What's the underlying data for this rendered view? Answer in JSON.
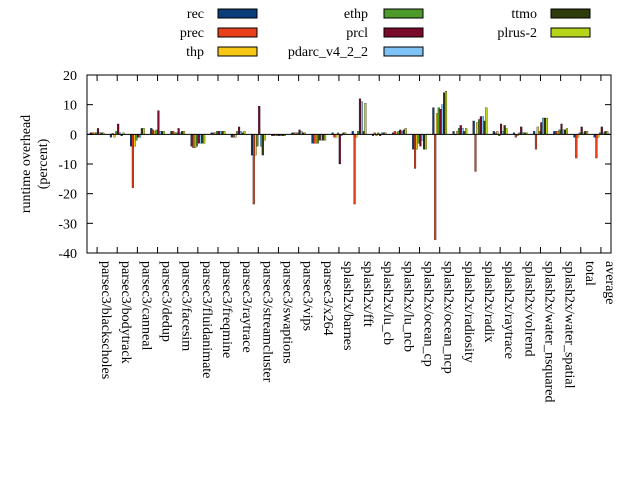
{
  "chart_data": {
    "type": "bar",
    "title": "",
    "xlabel": "",
    "ylabel": "runtime overhead (percent)",
    "ylabel_lines": [
      "runtime overhead",
      "(percent)"
    ],
    "ylim": [
      -40,
      20
    ],
    "yticks": [
      20,
      10,
      0,
      -10,
      -20,
      -30,
      -40
    ],
    "grid": false,
    "legend_position": "top",
    "categories": [
      "parsec3/blackscholes",
      "parsec3/bodytrack",
      "parsec3/canneal",
      "parsec3/dedup",
      "parsec3/facesim",
      "parsec3/fluidanimate",
      "parsec3/freqmine",
      "parsec3/raytrace",
      "parsec3/streamcluster",
      "parsec3/swaptions",
      "parsec3/vips",
      "parsec3/x264",
      "splash2x/barnes",
      "splash2x/fft",
      "splash2x/lu_cb",
      "splash2x/lu_ncb",
      "splash2x/ocean_cp",
      "splash2x/ocean_ncp",
      "splash2x/radiosity",
      "splash2x/radix",
      "splash2x/raytrace",
      "splash2x/volrend",
      "splash2x/water_nsquared",
      "splash2x/water_spatial",
      "total",
      "average"
    ],
    "series": [
      {
        "name": "rec",
        "color": "#0a3d7a",
        "values": [
          0.5,
          -1,
          -4,
          2,
          1,
          -4,
          0.5,
          -1,
          -7,
          -0.5,
          0.5,
          -3,
          0.5,
          1,
          -0.5,
          0.5,
          -5,
          9,
          1,
          4.5,
          1,
          0.5,
          1,
          1,
          -1,
          -1
        ]
      },
      {
        "name": "prec",
        "color": "#e8401a",
        "values": [
          0.5,
          0.3,
          -18,
          1.5,
          1,
          -4.5,
          0.5,
          -1,
          -23.5,
          -0.5,
          0.5,
          -3,
          -1,
          -23.5,
          0.5,
          1,
          -11.5,
          -35.5,
          0,
          -12.5,
          0.5,
          -1,
          -5,
          1,
          -8,
          -8
        ]
      },
      {
        "name": "thp",
        "color": "#f7c716",
        "values": [
          0.5,
          -1,
          -4,
          1,
          0.5,
          -4.5,
          0.5,
          -1,
          -7,
          -0.5,
          0.5,
          -3,
          -1,
          -1,
          -0.5,
          0.5,
          -5,
          7,
          1,
          4,
          1,
          -0.5,
          2.5,
          1,
          -1,
          -1
        ]
      },
      {
        "name": "ethp",
        "color": "#4c9a2a",
        "values": [
          0.5,
          1,
          -2,
          1.5,
          0.5,
          -4,
          1,
          1,
          -4,
          -0.5,
          0.5,
          -3,
          0.5,
          1,
          0.5,
          1,
          -3,
          9,
          2,
          5,
          -0.5,
          0.5,
          1,
          1.5,
          0.5,
          0.5
        ]
      },
      {
        "name": "prcl",
        "color": "#7a0a2a",
        "values": [
          2,
          3.5,
          -1,
          8,
          2,
          -3,
          1,
          2.5,
          9.5,
          -0.5,
          1.5,
          -2,
          -10,
          12,
          -0.5,
          1.5,
          -4,
          8.5,
          3,
          6,
          3.5,
          2.5,
          4,
          3.5,
          2.5,
          2.5
        ]
      },
      {
        "name": "pdarc_v4_2_2",
        "color": "#7fc2f5",
        "values": [
          0.5,
          0.5,
          -1,
          1,
          0.5,
          -3,
          1,
          1,
          -4,
          -0.5,
          1,
          -2,
          -0.5,
          11,
          0.5,
          1,
          -2,
          10,
          2,
          6,
          1,
          0.5,
          5.5,
          1.5,
          0.5,
          0.5
        ]
      },
      {
        "name": "ttmo",
        "color": "#2e3b0a",
        "values": [
          0.5,
          -0.5,
          2,
          1,
          1,
          -3,
          1,
          0.5,
          -7,
          -0.5,
          0.5,
          -2,
          0.5,
          1,
          0.5,
          1.5,
          -5,
          14,
          1,
          4.5,
          3,
          0.5,
          5.5,
          1.5,
          1,
          1
        ]
      },
      {
        "name": "plrus-2",
        "color": "#b8d41a",
        "values": [
          0.5,
          0.5,
          2,
          1,
          1,
          -3,
          1,
          1,
          -2,
          -0.5,
          0.5,
          -2,
          0.5,
          10.5,
          0.5,
          2,
          -5,
          14.5,
          2,
          9,
          2,
          0.5,
          5.5,
          2,
          1,
          1
        ]
      }
    ]
  }
}
